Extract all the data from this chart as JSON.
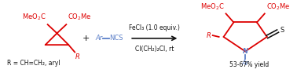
{
  "figsize": [
    3.78,
    0.93
  ],
  "dpi": 100,
  "bg_color": "white",
  "red": "#dd0000",
  "blue": "#5b7fc8",
  "black": "#111111",
  "arrow_label1": "FeCl₃ (1.0 equiv.)",
  "arrow_label2": "Cl(CH₂)₂Cl, rt",
  "yield_text": "53-67% yield",
  "sub_text": "R = CH=CH₂, aryl"
}
